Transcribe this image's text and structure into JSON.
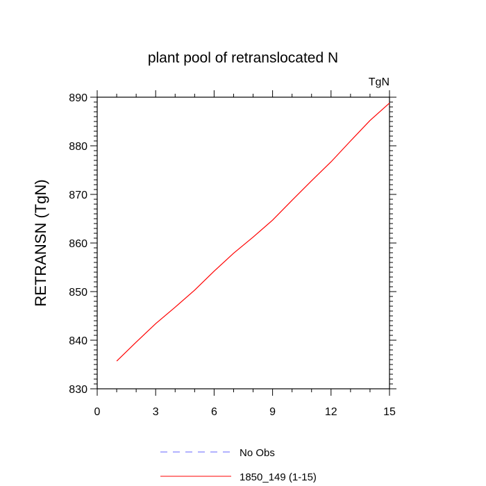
{
  "chart_data": {
    "type": "line",
    "title": "plant pool of retranslocated N",
    "units": "TgN",
    "ylabel": "RETRANSN  (TgN)",
    "xlabel": "",
    "xlim": [
      0,
      15
    ],
    "ylim": [
      830,
      890
    ],
    "x_ticks": [
      0,
      3,
      6,
      9,
      12,
      15
    ],
    "y_ticks": [
      830,
      840,
      850,
      860,
      870,
      880,
      890
    ],
    "grid": false,
    "legend_position": "bottom-center",
    "series": [
      {
        "name": "1850_149 (1-15)",
        "color": "#ff0000",
        "line_style": "solid",
        "x": [
          1,
          2,
          3,
          4,
          5,
          6,
          7,
          8,
          9,
          10,
          11,
          12,
          13,
          14,
          15
        ],
        "y": [
          835.7,
          839.6,
          843.4,
          846.8,
          850.3,
          854.2,
          857.9,
          861.2,
          864.7,
          868.8,
          872.8,
          876.7,
          881.0,
          885.2,
          888.8
        ]
      }
    ],
    "legend": [
      {
        "label": "No Obs",
        "color": "#6666ff",
        "line_style": "dashed"
      },
      {
        "label": "1850_149 (1-15)",
        "color": "#ff0000",
        "line_style": "solid"
      }
    ]
  }
}
